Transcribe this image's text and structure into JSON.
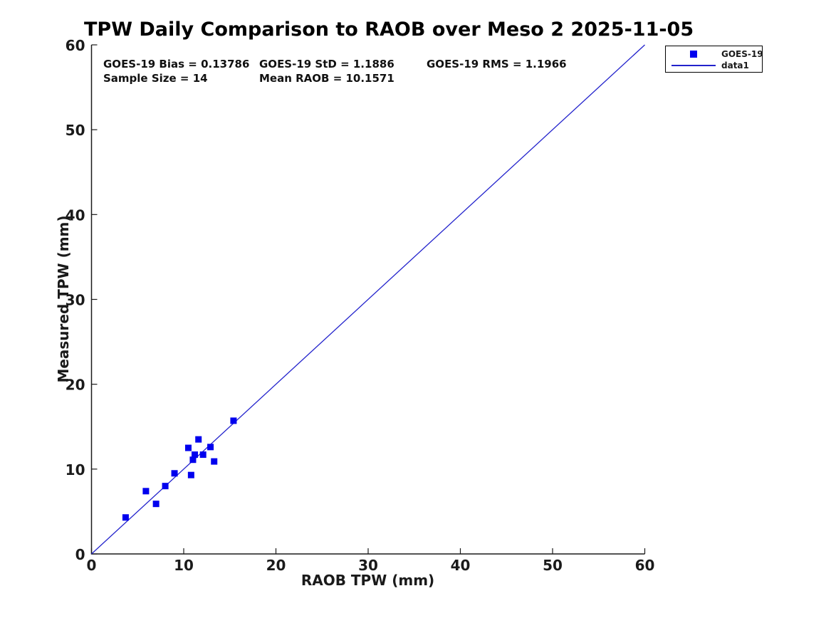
{
  "title": "TPW Daily Comparison to RAOB over Meso 2 2025-11-05",
  "chart_data": {
    "type": "scatter",
    "title": "TPW Daily Comparison to RAOB over Meso 2 2025-11-05",
    "xlabel": "RAOB TPW (mm)",
    "ylabel": "Measured TPW (mm)",
    "xlim": [
      0,
      60
    ],
    "ylim": [
      0,
      60
    ],
    "xticks": [
      0,
      10,
      20,
      30,
      40,
      50,
      60
    ],
    "yticks": [
      0,
      10,
      20,
      30,
      40,
      50,
      60
    ],
    "grid": false,
    "legend_position": "outside-top-right",
    "stats": {
      "bias": "GOES-19 Bias = 0.13786",
      "std": "GOES-19 StD = 1.1886",
      "rms": "GOES-19 RMS = 1.1966",
      "sample_size": "Sample Size = 14",
      "mean_raob": "Mean RAOB = 10.1571"
    },
    "colors": {
      "marker": "#0000ee",
      "line": "#2222cc",
      "axis": "#1a1a1a"
    },
    "series": [
      {
        "name": "GOES-19",
        "type": "scatter",
        "marker": "square",
        "color": "#0000ee",
        "points": [
          [
            3.7,
            4.3
          ],
          [
            5.9,
            7.4
          ],
          [
            7.0,
            5.9
          ],
          [
            8.0,
            8.0
          ],
          [
            9.0,
            9.5
          ],
          [
            10.5,
            12.5
          ],
          [
            10.8,
            9.3
          ],
          [
            11.0,
            11.1
          ],
          [
            11.2,
            11.7
          ],
          [
            11.6,
            13.5
          ],
          [
            12.1,
            11.7
          ],
          [
            12.9,
            12.6
          ],
          [
            13.3,
            10.9
          ],
          [
            15.4,
            15.7
          ]
        ]
      },
      {
        "name": "data1",
        "type": "line",
        "color": "#2222cc",
        "points": [
          [
            0,
            0
          ],
          [
            60,
            60
          ]
        ]
      }
    ]
  }
}
